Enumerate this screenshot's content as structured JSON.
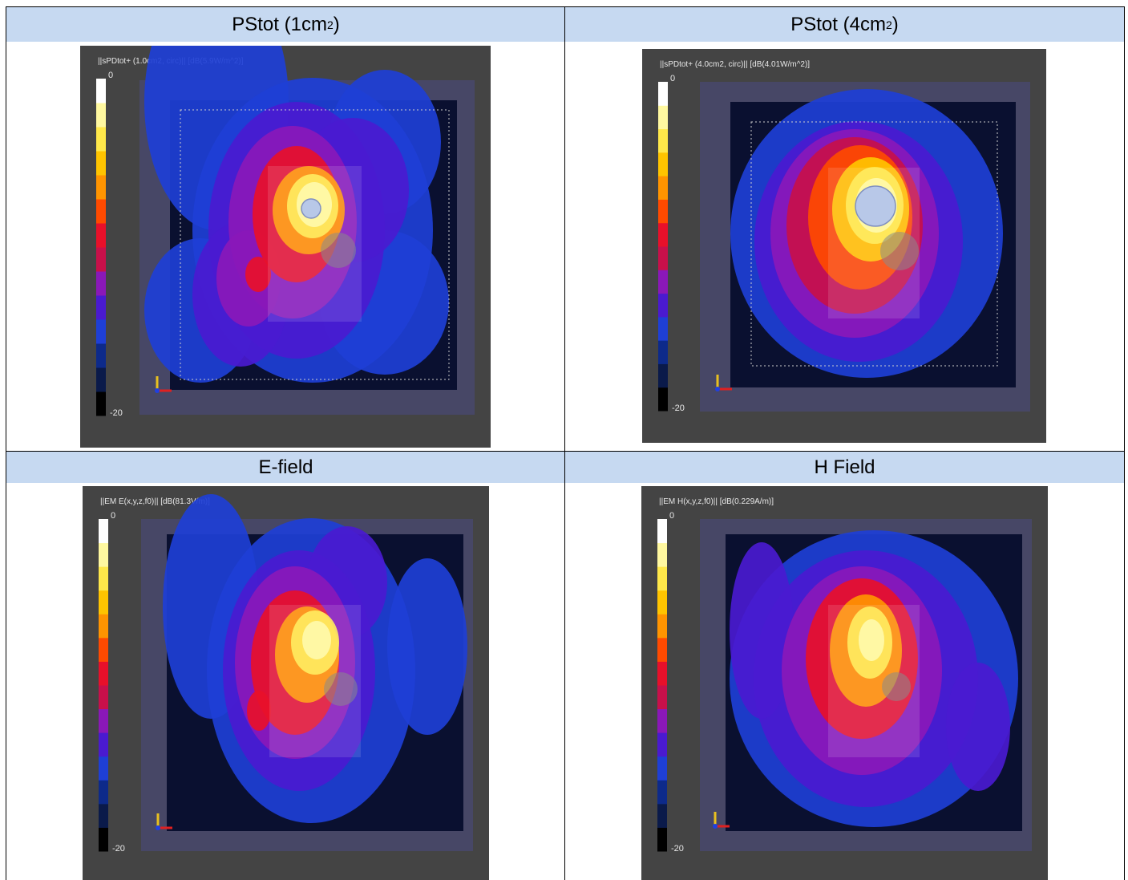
{
  "headers": {
    "top_left": {
      "text": "PStot (1cm",
      "sup": "2",
      "tail": ")"
    },
    "top_right": {
      "text": "PStot (4cm",
      "sup": "2",
      "tail": ")"
    },
    "bottom_left": "E-field",
    "bottom_right": "H Field"
  },
  "panels": {
    "p1": {
      "title": "||sPDtot+ (1.0cm2, circ)|| [dB(5.9W/m^2)]",
      "cb_max": "0",
      "cb_min": "-20"
    },
    "p2": {
      "title": "||sPDtot+ (4.0cm2, circ)|| [dB(4.01W/m^2)]",
      "cb_max": "0",
      "cb_min": "-20"
    },
    "p3": {
      "title": "||EM E(x,y,z,f0)|| [dB(81.3V/m)]",
      "cb_max": "0",
      "cb_min": "-20"
    },
    "p4": {
      "title": "||EM H(x,y,z,f0)|| [dB(0.229A/m)]",
      "cb_max": "0",
      "cb_min": "-20"
    }
  },
  "colors": {
    "header_bg": "#c6d9f1",
    "colormap": [
      "#000000",
      "#0a1a4a",
      "#0d2a8a",
      "#1e3fd6",
      "#4a1ad0",
      "#8a18b8",
      "#c8104a",
      "#e8102a",
      "#ff4a00",
      "#ff9400",
      "#ffc400",
      "#ffe84a",
      "#fff8a0",
      "#ffffff"
    ]
  }
}
